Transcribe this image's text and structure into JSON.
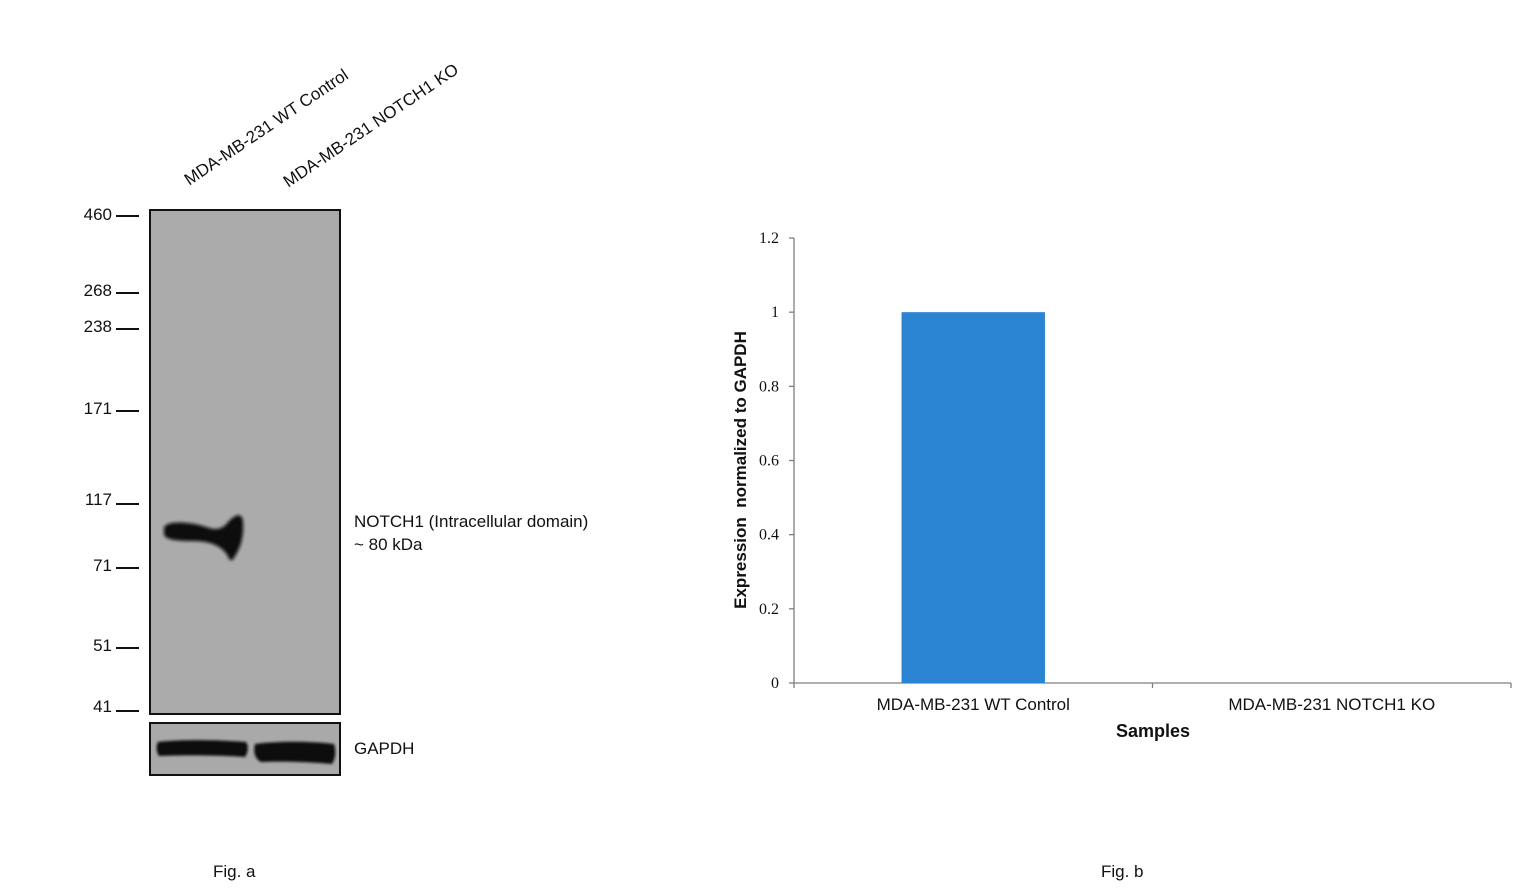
{
  "figure_a": {
    "caption": "Fig. a",
    "lanes": [
      "MDA-MB-231 WT Control",
      "MDA-MB-231 NOTCH1 KO"
    ],
    "mw_markers": [
      "460",
      "268",
      "238",
      "171",
      "117",
      "71",
      "51",
      "41"
    ],
    "band_label_line1": "NOTCH1 (Intracellular domain)",
    "band_label_line2": "~ 80 kDa",
    "loading_control_label": "GAPDH"
  },
  "figure_b": {
    "caption": "Fig. b"
  },
  "chart_data": {
    "type": "bar",
    "title": "",
    "categories": [
      "MDA-MB-231 WT Control",
      "MDA-MB-231 NOTCH1 KO"
    ],
    "values": [
      1.0,
      0.0
    ],
    "xlabel": "Samples",
    "ylabel": "Expression  normalized to GAPDH",
    "ylim": [
      0,
      1.2
    ],
    "yticks": [
      "0",
      "0.2",
      "0.4",
      "0.6",
      "0.8",
      "1",
      "1.2"
    ],
    "bar_color": "#2a84d2",
    "grid": false,
    "legend": "none"
  }
}
